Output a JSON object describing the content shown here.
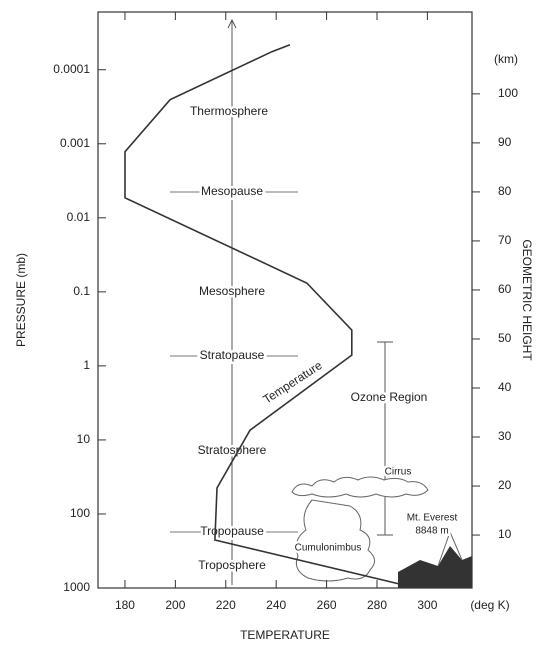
{
  "chart_data": {
    "type": "line",
    "x": [
      245.5,
      238.3,
      197.9,
      180,
      180,
      252.2,
      270,
      270,
      229.6,
      216.5,
      215.7,
      289.1
    ],
    "values": [
      110,
      108.6,
      98.8,
      88.2,
      78.8,
      61.4,
      51.8,
      46.7,
      31.4,
      19.6,
      9,
      0
    ],
    "axis": "y2",
    "color": "#333333",
    "xlabel": "TEMPERATURE",
    "xunit": "(deg K)",
    "ylabel": "PRESSURE (mb)",
    "y2label": "GEOMETRIC HEIGHT",
    "y2unit": "(km)",
    "xlim": [
      169.3,
      317.7
    ],
    "xticks": [
      180,
      200,
      220,
      240,
      260,
      280,
      300
    ],
    "ylim": [
      1000,
      1.66e-05
    ],
    "log_y": true,
    "yticks": [
      0.0001,
      0.001,
      0.01,
      0.1,
      1,
      10,
      100,
      1000
    ],
    "y2lim": [
      -0.8,
      116.7
    ],
    "y2ticks": [
      10,
      20,
      30,
      40,
      50,
      60,
      70,
      80,
      90,
      100
    ],
    "annotations": {
      "thermosphere": "Thermosphere",
      "mesopause": "Mesopause",
      "mesosphere": "Mesosphere",
      "stratopause": "Stratopause",
      "stratosphere": "Stratosphere",
      "tropopause": "Tropopause",
      "troposphere": "Troposphere",
      "curve": "Temperature",
      "ozone": "Ozone Region",
      "cirrus": "Cirrus",
      "cumulonimbus": "Cumulonimbus",
      "everest": "Mt. Everest",
      "everest_height": "8848 m"
    }
  }
}
